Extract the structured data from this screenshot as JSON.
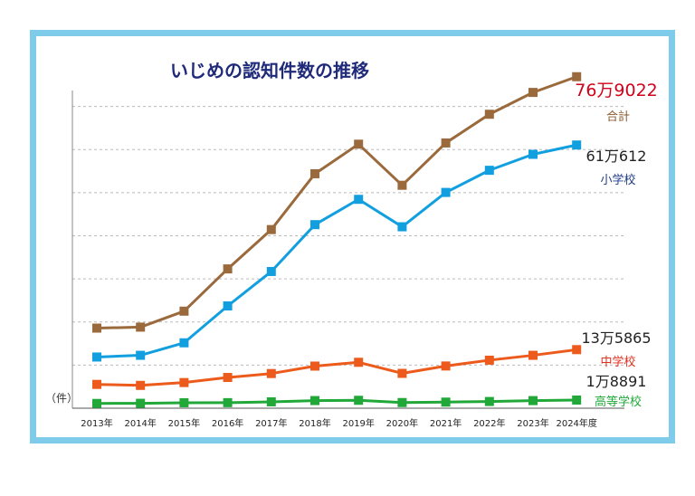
{
  "chart_data": {
    "type": "line",
    "title": "いじめの認知件数の推移",
    "unit_label": "（件）",
    "categories": [
      "2013年",
      "2014年",
      "2015年",
      "2016年",
      "2017年",
      "2018年",
      "2019年",
      "2020年",
      "2021年",
      "2022年",
      "2023年",
      "2024年度"
    ],
    "ylim": [
      0,
      800000
    ],
    "grid": true,
    "series": [
      {
        "name": "合計",
        "end_label": "76万9022",
        "color": "#9b6a3c",
        "label_color": "#d0021b",
        "name_color": "#8a5a2e",
        "values": [
          185803,
          188072,
          225132,
          323143,
          414378,
          543933,
          612496,
          517163,
          615351,
          681948,
          732568,
          769022
        ]
      },
      {
        "name": "小学校",
        "end_label": "61万612",
        "color": "#129fe0",
        "label_color": "#222222",
        "name_color": "#1f3c88",
        "values": [
          118748,
          122734,
          151692,
          237256,
          317121,
          425844,
          484545,
          420897,
          500562,
          551944,
          588930,
          610612
        ]
      },
      {
        "name": "中学校",
        "end_label": "13万5865",
        "color": "#ec5a1c",
        "label_color": "#222222",
        "name_color": "#e0311f",
        "values": [
          55248,
          52971,
          59502,
          71309,
          80424,
          97704,
          106524,
          80877,
          97937,
          111404,
          122703,
          135865
        ]
      },
      {
        "name": "高等学校",
        "end_label": "1万8891",
        "color": "#21a838",
        "label_color": "#222222",
        "name_color": "#21a838",
        "values": [
          11039,
          11404,
          12664,
          12874,
          14789,
          17709,
          18352,
          13126,
          14157,
          15568,
          17611,
          18891
        ]
      }
    ]
  }
}
